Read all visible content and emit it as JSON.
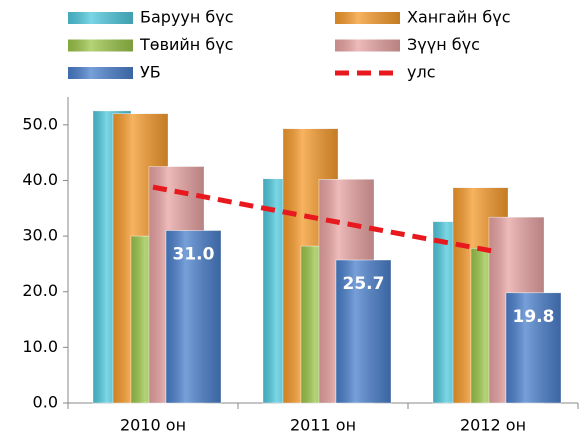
{
  "chart_data": {
    "type": "bar",
    "categories": [
      "2010 он",
      "2011 он",
      "2012 он"
    ],
    "series": [
      {
        "name": "Баруун бүс",
        "color": "#4fc8dc",
        "values": [
          52.5,
          40.3,
          32.6
        ]
      },
      {
        "name": "Хангайн бүс",
        "color": "#f59a2c",
        "values": [
          52,
          49.3,
          38.7
        ]
      },
      {
        "name": "Төвийн бүс",
        "color": "#9bc54a",
        "values": [
          30,
          28.2,
          27.8
        ]
      },
      {
        "name": "Зүүн бүс",
        "color": "#e8a3a3",
        "values": [
          42.5,
          40.2,
          33.4
        ]
      },
      {
        "name": "УБ",
        "color": "#4a7fcb",
        "values": [
          31.0,
          25.7,
          19.8
        ],
        "value_labels": [
          "31.0",
          "25.7",
          "19.8"
        ]
      },
      {
        "name": "улс",
        "color": "#e8191e",
        "type": "line",
        "values": [
          38.8,
          33.0,
          27.3
        ]
      }
    ],
    "ylim": [
      0,
      55
    ],
    "yticks": [
      {
        "value": 0,
        "label": "0.0"
      },
      {
        "value": 10,
        "label": "10.0"
      },
      {
        "value": 20,
        "label": "20.0"
      },
      {
        "value": 30,
        "label": "30.0"
      },
      {
        "value": 40,
        "label": "40.0"
      },
      {
        "value": 50,
        "label": "50.0"
      }
    ],
    "legend": "top"
  }
}
